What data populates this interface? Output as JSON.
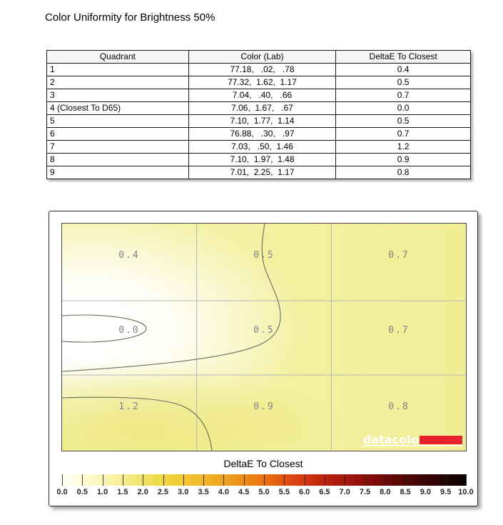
{
  "page": {
    "title": "Color Uniformity for Brightness 50%"
  },
  "table": {
    "headers": [
      "Quadrant",
      "Color (Lab)",
      "DeltaE To Closest"
    ],
    "rows": [
      {
        "quadrant": "1",
        "lab": "77.18,   .02,   .78",
        "delta_e": "0.4"
      },
      {
        "quadrant": "2",
        "lab": "77.32,  1.62,  1.17",
        "delta_e": "0.5"
      },
      {
        "quadrant": "3",
        "lab": "7.04,   .40,   .66",
        "delta_e": "0.7"
      },
      {
        "quadrant": "4 (Closest To D65)",
        "lab": "7.06,  1.67,   .67",
        "delta_e": "0.0"
      },
      {
        "quadrant": "5",
        "lab": "7.10,  1.77,  1.14",
        "delta_e": "0.5"
      },
      {
        "quadrant": "6",
        "lab": "76.88,   .30,   .97",
        "delta_e": "0.7"
      },
      {
        "quadrant": "7",
        "lab": "7.03,   .50,  1.46",
        "delta_e": "1.2"
      },
      {
        "quadrant": "8",
        "lab": "7.10,  1.97,  1.48",
        "delta_e": "0.9"
      },
      {
        "quadrant": "9",
        "lab": "7.01,  2.25,  1.17",
        "delta_e": "0.8"
      }
    ]
  },
  "chart_data": {
    "type": "heatmap",
    "title": "DeltaE To Closest",
    "grid": {
      "rows": 3,
      "cols": 3
    },
    "cell_labels": [
      [
        "0.4",
        "0.5",
        "0.7"
      ],
      [
        "0.0",
        "0.5",
        "0.7"
      ],
      [
        "1.2",
        "0.9",
        "0.8"
      ]
    ],
    "cell_values": [
      [
        0.4,
        0.5,
        0.7
      ],
      [
        0.0,
        0.5,
        0.7
      ],
      [
        1.2,
        0.9,
        0.8
      ]
    ],
    "colorbar": {
      "title": "DeltaE To Closest",
      "min": 0.0,
      "max": 10.0,
      "step": 0.5,
      "tick_labels": [
        "0.0",
        "0.5",
        "1.0",
        "1.5",
        "2.0",
        "2.5",
        "3.0",
        "3.5",
        "4.0",
        "4.5",
        "5.0",
        "5.5",
        "6.0",
        "6.5",
        "7.0",
        "7.5",
        "8.0",
        "8.5",
        "9.0",
        "9.5",
        "10.0"
      ],
      "gradient_stops": [
        "#FFFFF2",
        "#FEFCD8",
        "#FAF6B8",
        "#F4EE94",
        "#F0E468",
        "#F0D844",
        "#F1C933",
        "#F0B728",
        "#EFA31F",
        "#ED8C18",
        "#EB7212",
        "#E25410",
        "#D1380F",
        "#BC240E",
        "#A4160D",
        "#8A0F0B",
        "#6E0A09",
        "#520606",
        "#380404",
        "#1F0202",
        "#0D0101"
      ]
    },
    "colors": {
      "base_yellow": "#F4F1A3",
      "white_low": "#FFFFFF",
      "contour": "#6B6B5E"
    }
  },
  "logo": {
    "text": "datacolor",
    "red": "#E8212E"
  }
}
